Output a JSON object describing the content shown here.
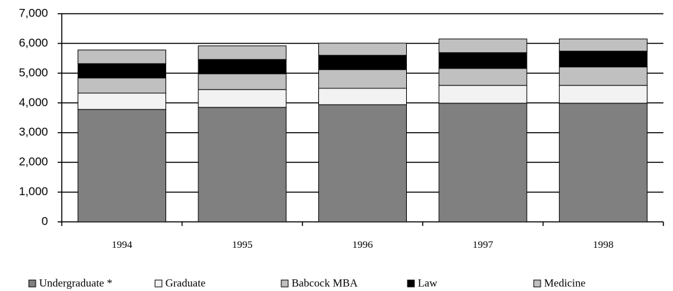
{
  "chart_data": {
    "type": "stacked_bar",
    "categories": [
      "1994",
      "1995",
      "1996",
      "1997",
      "1998"
    ],
    "series": [
      {
        "name": "Undergraduate *",
        "color": "#808080",
        "values": [
          3780,
          3850,
          3940,
          3990,
          3990
        ]
      },
      {
        "name": "Graduate",
        "color": "#f2f2f2",
        "values": [
          550,
          600,
          550,
          600,
          600
        ]
      },
      {
        "name": "Babcock MBA",
        "color": "#c0c0c0",
        "values": [
          510,
          530,
          630,
          570,
          620
        ]
      },
      {
        "name": "Law",
        "color": "#000000",
        "values": [
          480,
          480,
          480,
          530,
          530
        ]
      },
      {
        "name": "Medicine",
        "color": "#c0c0c0",
        "values": [
          460,
          460,
          410,
          460,
          410
        ]
      }
    ],
    "ylim": [
      0,
      7000
    ],
    "yticks": [
      0,
      {
        "value": 1000,
        "label": "1,000"
      },
      {
        "value": 2000,
        "label": "2,000"
      },
      {
        "value": 3000,
        "label": "3,000"
      },
      {
        "value": 4000,
        "label": "4,000"
      },
      {
        "value": 5000,
        "label": "5,000"
      },
      {
        "value": 6000,
        "label": "6,000"
      },
      {
        "value": 7000,
        "label": "7,000"
      }
    ],
    "grid": true,
    "legend": "bottom"
  }
}
